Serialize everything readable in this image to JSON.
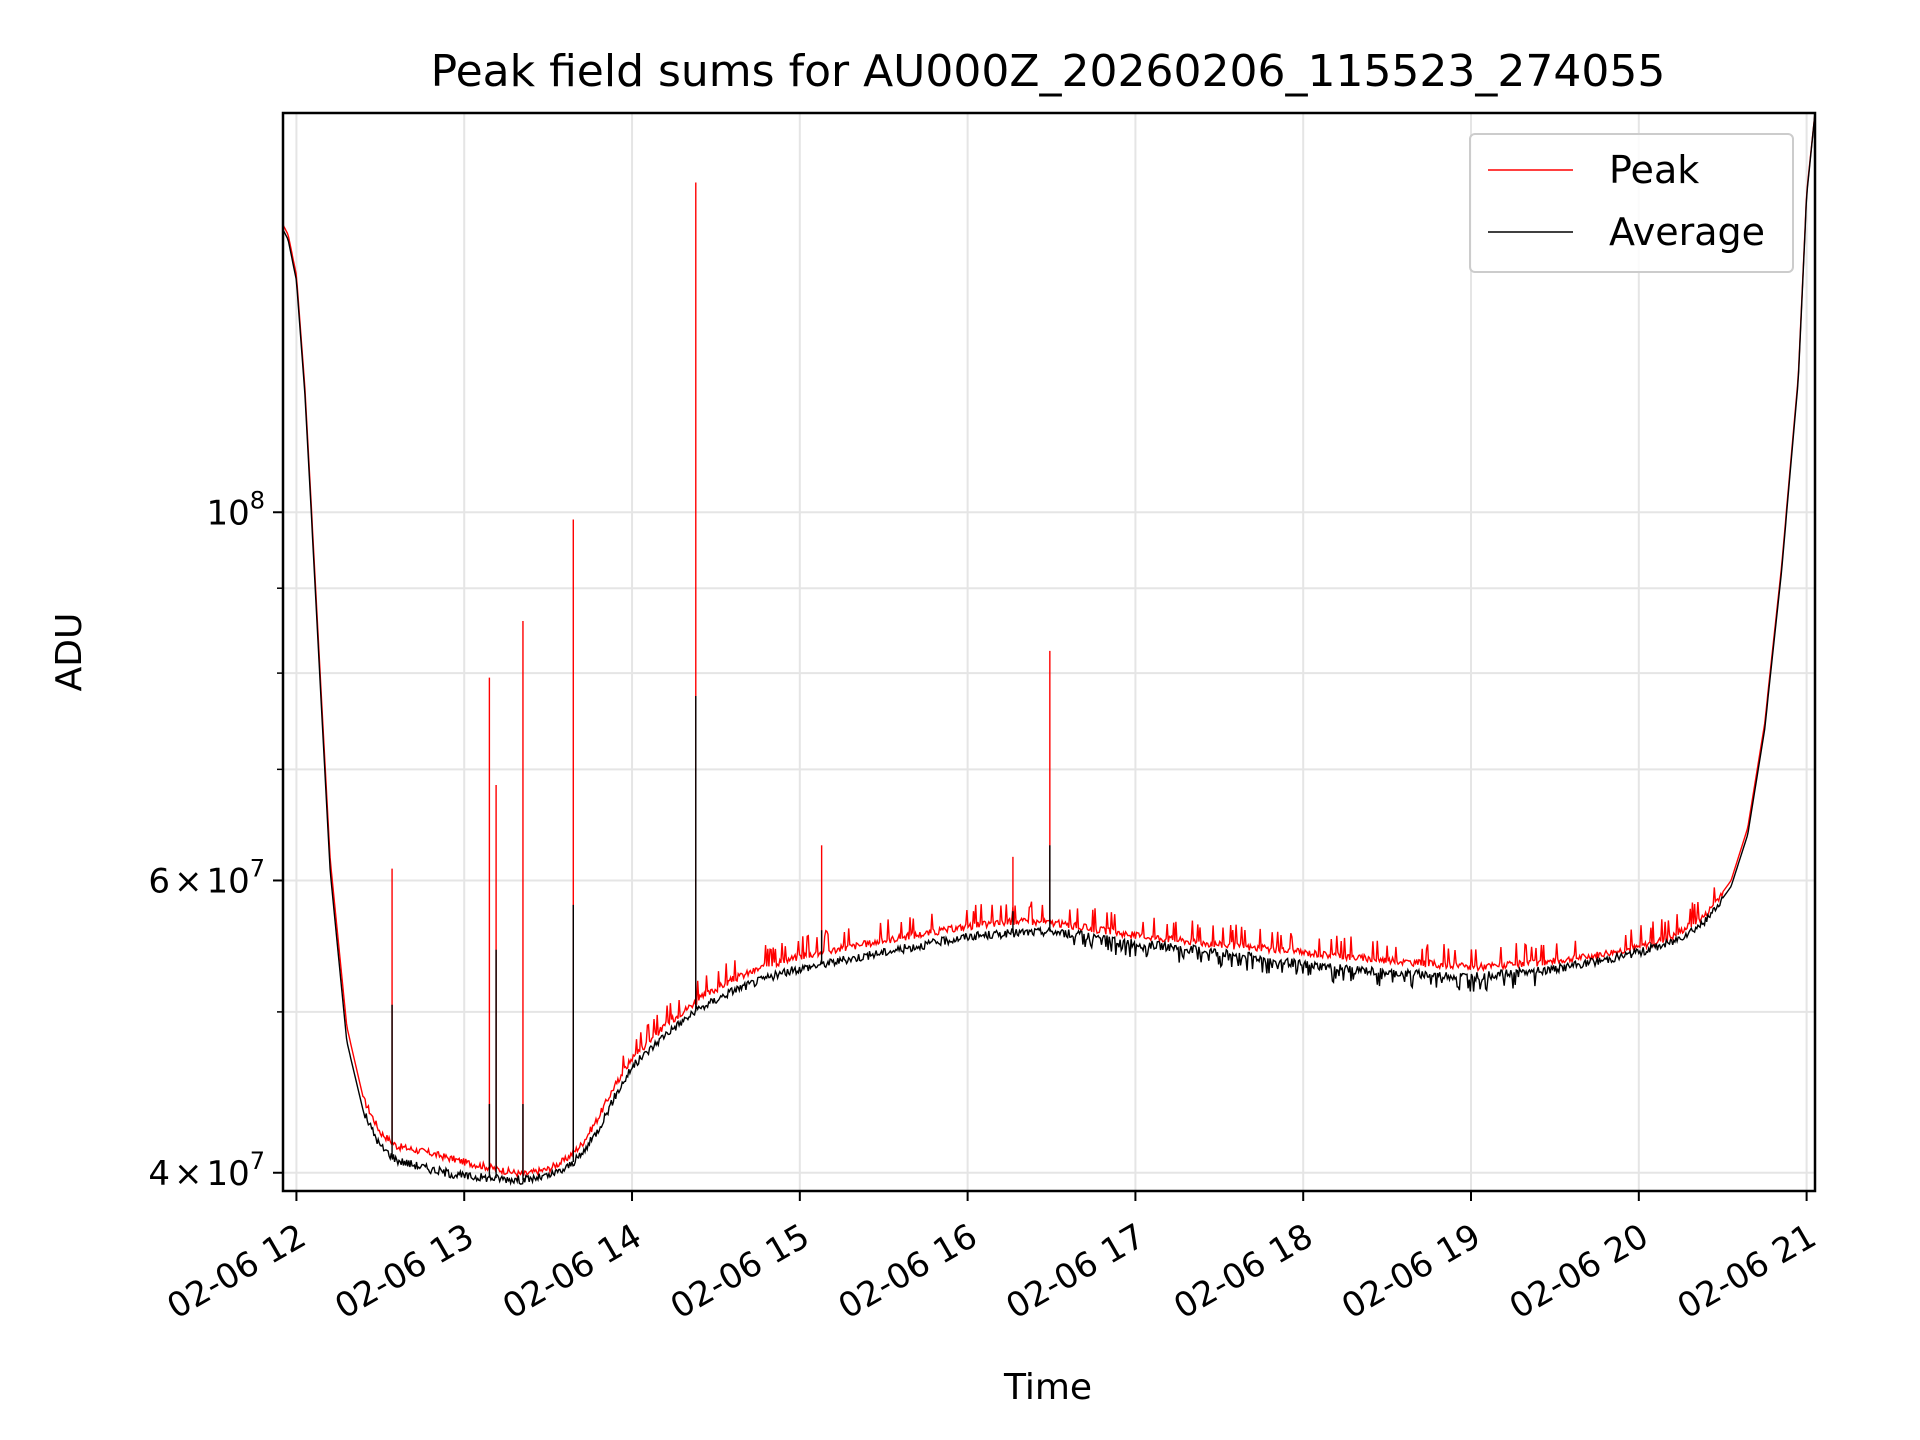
{
  "chart_data": {
    "type": "line",
    "title": "Peak field sums for AU000Z_20260206_115523_274055",
    "xlabel": "Time",
    "ylabel": "ADU",
    "yscale": "log",
    "ylim": [
      39000000,
      174000000
    ],
    "xlim_hours": [
      11.92,
      21.05
    ],
    "x_ticks": [
      {
        "label": "02-06 12",
        "hour": 12
      },
      {
        "label": "02-06 13",
        "hour": 13
      },
      {
        "label": "02-06 14",
        "hour": 14
      },
      {
        "label": "02-06 15",
        "hour": 15
      },
      {
        "label": "02-06 16",
        "hour": 16
      },
      {
        "label": "02-06 17",
        "hour": 17
      },
      {
        "label": "02-06 18",
        "hour": 18
      },
      {
        "label": "02-06 19",
        "hour": 19
      },
      {
        "label": "02-06 20",
        "hour": 20
      },
      {
        "label": "02-06 21",
        "hour": 21
      }
    ],
    "y_ticks": [
      {
        "base": "4",
        "exp": "7",
        "value": 40000000,
        "label_type": "mult"
      },
      {
        "base": "6",
        "exp": "7",
        "value": 60000000,
        "label_type": "mult"
      },
      {
        "base": "10",
        "exp": "8",
        "value": 100000000,
        "label_type": "pow"
      }
    ],
    "y_minor_ticks": [
      50000000,
      70000000,
      80000000,
      90000000
    ],
    "legend": {
      "position": "top-right",
      "entries": [
        {
          "name": "Peak",
          "color": "#ff0000"
        },
        {
          "name": "Average",
          "color": "#000000"
        }
      ]
    },
    "series": [
      {
        "name": "Average",
        "color": "#000000",
        "x_hours": [
          11.92,
          11.95,
          12.0,
          12.05,
          12.1,
          12.15,
          12.2,
          12.3,
          12.4,
          12.5,
          12.6,
          12.8,
          13.0,
          13.2,
          13.35,
          13.5,
          13.6,
          13.7,
          13.8,
          13.9,
          14.0,
          14.2,
          14.4,
          14.6,
          14.8,
          15.0,
          15.5,
          16.0,
          16.3,
          16.5,
          16.8,
          17.0,
          17.5,
          18.0,
          18.5,
          19.0,
          19.4,
          19.7,
          20.0,
          20.2,
          20.4,
          20.55,
          20.65,
          20.75,
          20.85,
          20.95,
          21.0,
          21.05
        ],
        "values": [
          148000000,
          146000000,
          138000000,
          118000000,
          95000000,
          76000000,
          61000000,
          48000000,
          43500000,
          41500000,
          40700000,
          40200000,
          39800000,
          39700000,
          39600000,
          39800000,
          40200000,
          41000000,
          42500000,
          44500000,
          46300000,
          48500000,
          50200000,
          51500000,
          52400000,
          53100000,
          54300000,
          55500000,
          55800000,
          55900000,
          55400000,
          55000000,
          54300000,
          53400000,
          52800000,
          52500000,
          52900000,
          53500000,
          54300000,
          55100000,
          56700000,
          59500000,
          64000000,
          74000000,
          92000000,
          120000000,
          155000000,
          174000000
        ]
      },
      {
        "name": "Peak",
        "color": "#ff0000",
        "x_hours": [
          11.92,
          11.95,
          12.0,
          12.05,
          12.1,
          12.15,
          12.2,
          12.3,
          12.4,
          12.5,
          12.6,
          12.8,
          13.0,
          13.2,
          13.35,
          13.5,
          13.6,
          13.7,
          13.8,
          13.9,
          14.0,
          14.2,
          14.4,
          14.6,
          14.8,
          15.0,
          15.5,
          16.0,
          16.3,
          16.5,
          16.8,
          17.0,
          17.5,
          18.0,
          18.5,
          19.0,
          19.4,
          19.7,
          20.0,
          20.2,
          20.4,
          20.55,
          20.65,
          20.75,
          20.85,
          20.95,
          21.0,
          21.05
        ],
        "values": [
          149000000,
          147000000,
          139000000,
          119000000,
          96000000,
          77000000,
          62000000,
          49000000,
          44300000,
          42300000,
          41500000,
          41100000,
          40600000,
          40200000,
          39900000,
          40200000,
          40700000,
          41600000,
          43200000,
          45200000,
          46900000,
          49100000,
          50900000,
          52300000,
          53300000,
          54000000,
          55200000,
          56300000,
          56700000,
          56600000,
          56000000,
          55600000,
          54900000,
          54300000,
          53700000,
          53200000,
          53500000,
          54000000,
          54700000,
          55500000,
          57200000,
          60000000,
          64600000,
          74600000,
          92600000,
          120600000,
          155600000,
          174000000
        ]
      }
    ],
    "spikes": [
      {
        "hour": 12.57,
        "peak": 61000000,
        "average": 50500000
      },
      {
        "hour": 13.15,
        "peak": 79500000,
        "average": 44000000
      },
      {
        "hour": 13.19,
        "peak": 68500000,
        "average": 54500000
      },
      {
        "hour": 13.35,
        "peak": 86000000,
        "average": 44000000
      },
      {
        "hour": 13.65,
        "peak": 99000000,
        "average": 58000000
      },
      {
        "hour": 14.38,
        "peak": 158000000,
        "average": 77500000
      },
      {
        "hour": 15.13,
        "peak": 63000000,
        "average": 56000000
      },
      {
        "hour": 16.27,
        "peak": 62000000,
        "average": 57500000
      },
      {
        "hour": 16.49,
        "peak": 82500000,
        "average": 63000000
      }
    ]
  }
}
